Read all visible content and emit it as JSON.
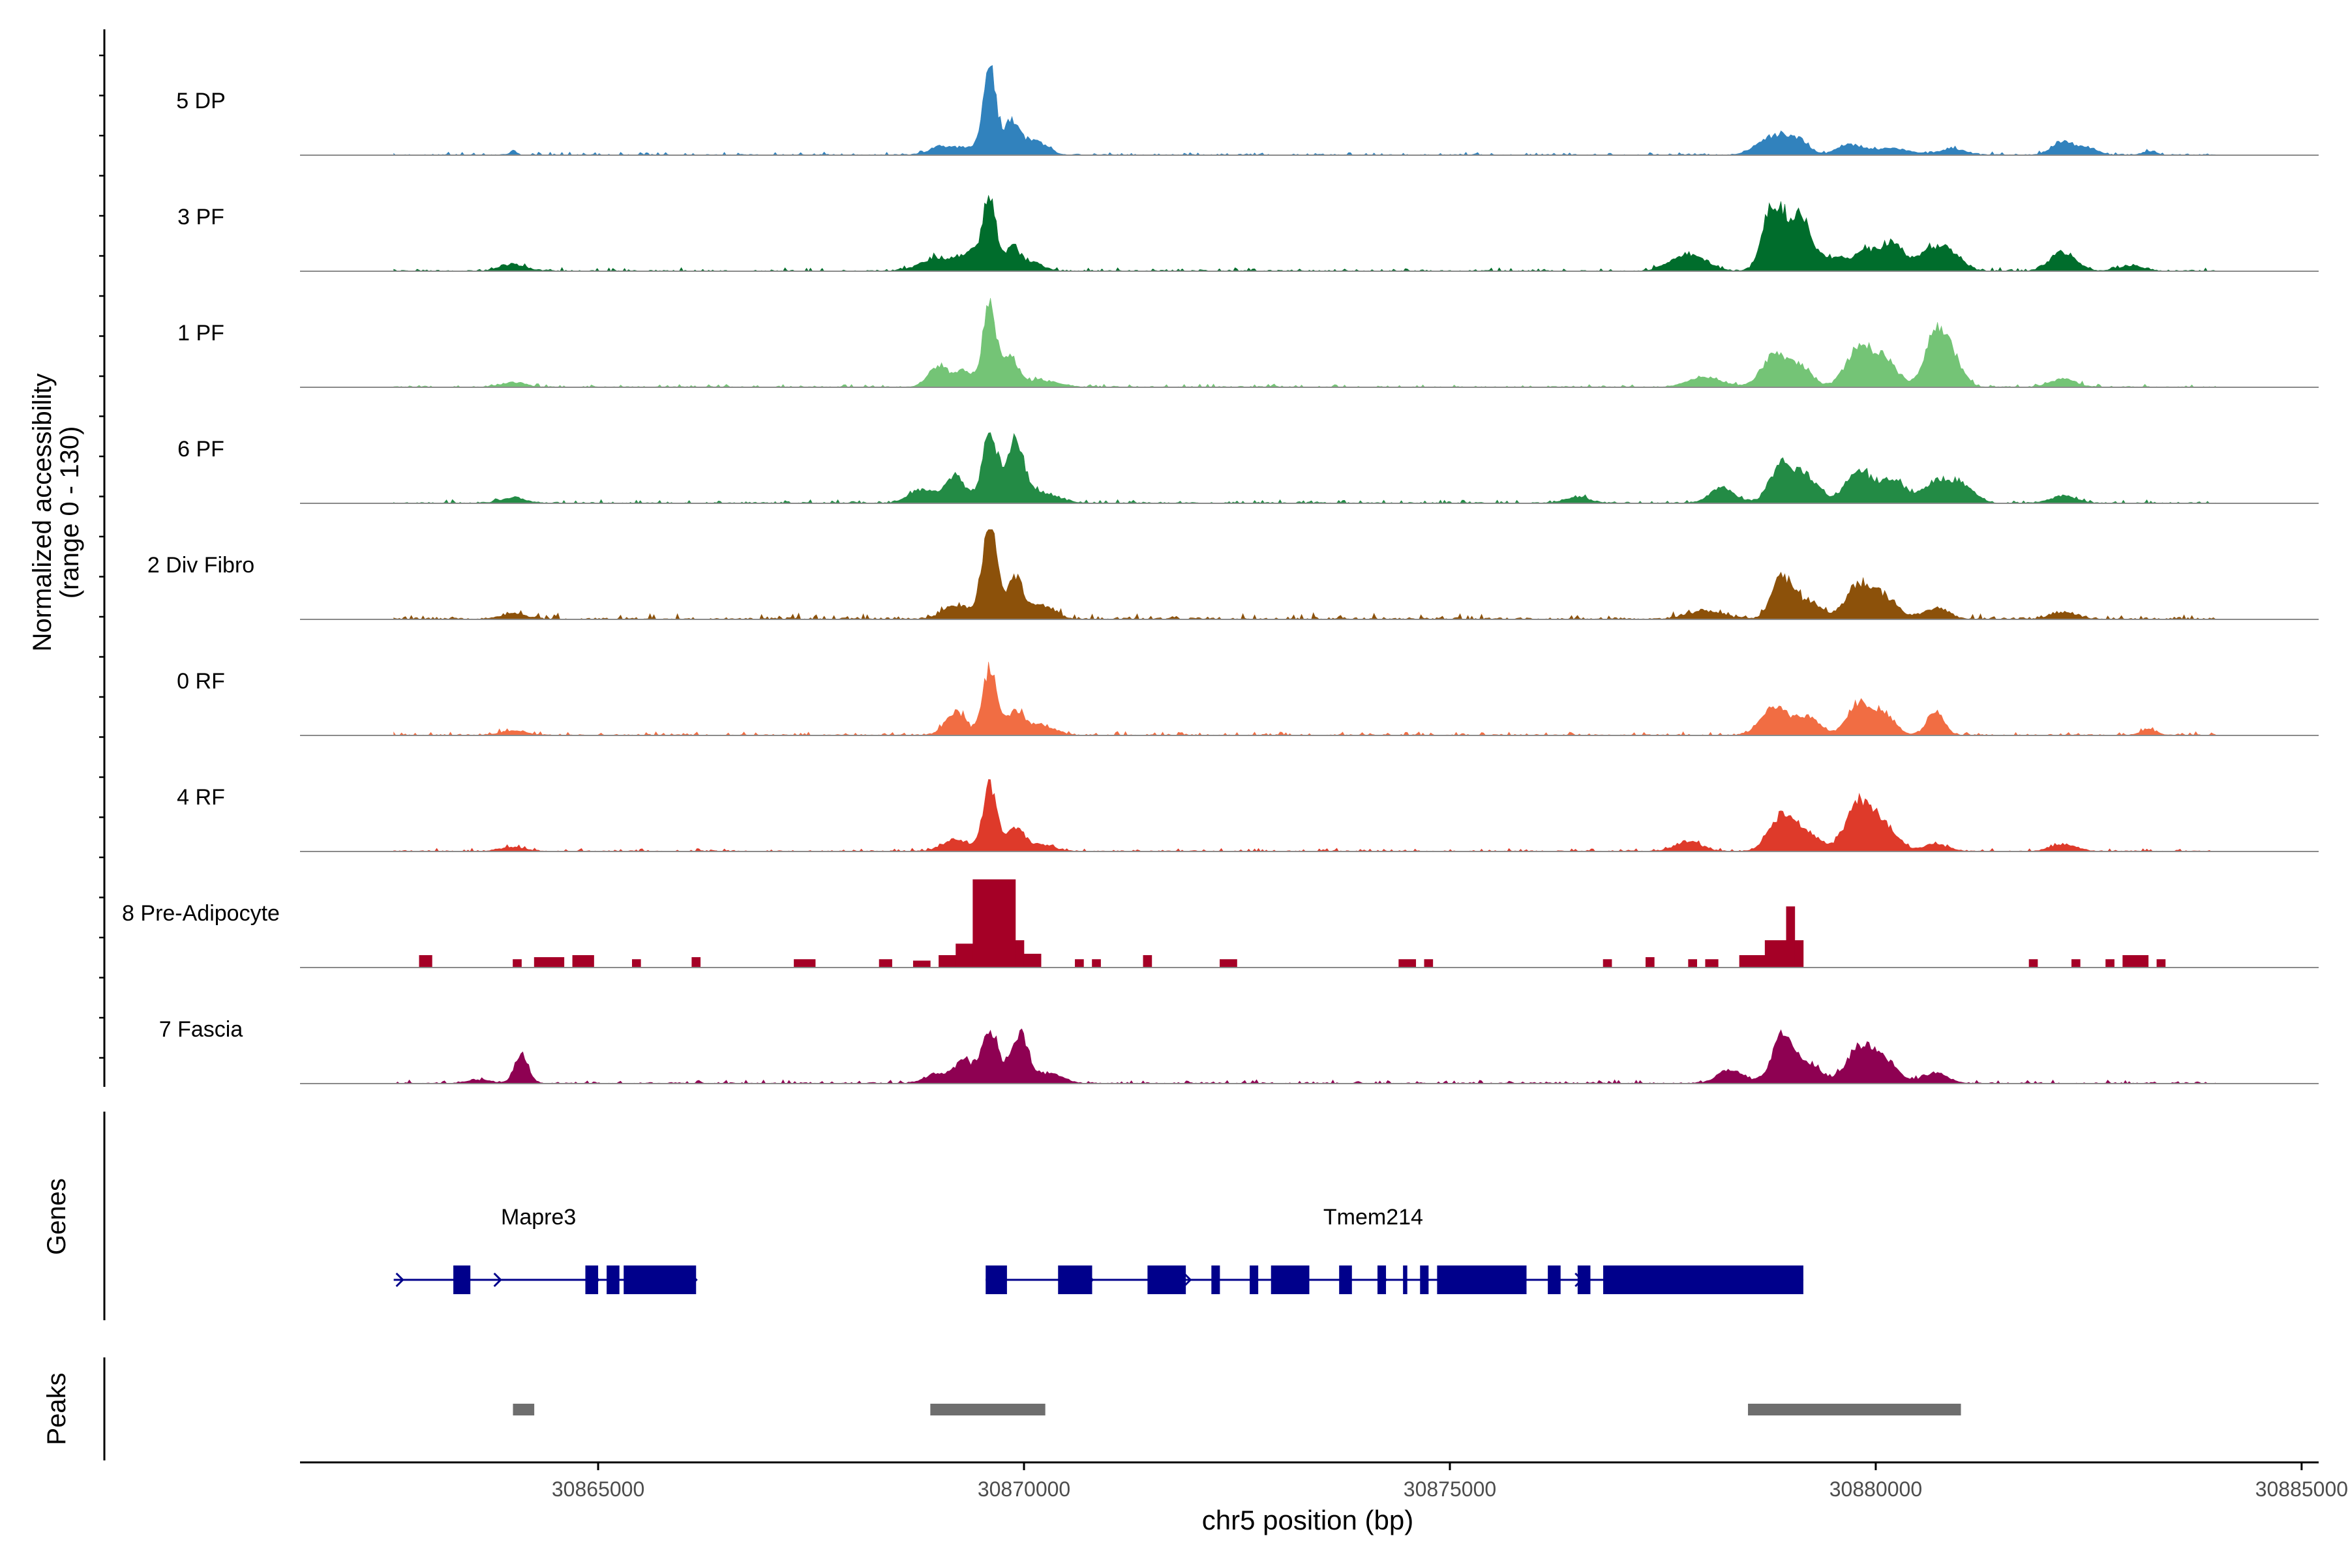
{
  "chart_data": {
    "type": "area",
    "title": "",
    "xlabel": "chr5 position (bp)",
    "ylabel": "Normalized accessibility",
    "ylabel_range": "(range 0 - 130)",
    "ylim": [
      0,
      130
    ],
    "xlim": [
      30861500,
      30885200
    ],
    "x_ticks": [
      30865000,
      30870000,
      30875000,
      30880000,
      30885000
    ],
    "x_tick_labels": [
      "30865000",
      "30870000",
      "30875000",
      "30880000",
      "30885000"
    ],
    "tracks": [
      {
        "name": "5 DP",
        "color": "#3182bd",
        "start": 30862600,
        "end": 30884000,
        "noise": 2.5,
        "stepped": false,
        "peaks": [
          [
            30864000,
            6,
            40
          ],
          [
            30869000,
            8,
            100
          ],
          [
            30869400,
            12,
            300
          ],
          [
            30869600,
            130,
            70
          ],
          [
            30869850,
            45,
            80
          ],
          [
            30870100,
            22,
            150
          ],
          [
            30878800,
            28,
            180
          ],
          [
            30879100,
            18,
            120
          ],
          [
            30879700,
            15,
            150
          ],
          [
            30880200,
            10,
            200
          ],
          [
            30880900,
            9,
            150
          ],
          [
            30882200,
            20,
            130
          ],
          [
            30882500,
            9,
            120
          ],
          [
            30883200,
            5,
            80
          ]
        ]
      },
      {
        "name": "3 PF",
        "color": "#006d2c",
        "start": 30862600,
        "end": 30884000,
        "noise": 3,
        "stepped": false,
        "peaks": [
          [
            30864000,
            10,
            150
          ],
          [
            30869000,
            20,
            200
          ],
          [
            30869400,
            28,
            120
          ],
          [
            30869600,
            110,
            70
          ],
          [
            30869850,
            30,
            80
          ],
          [
            30870050,
            15,
            150
          ],
          [
            30877800,
            25,
            200
          ],
          [
            30878800,
            95,
            120
          ],
          [
            30879100,
            80,
            130
          ],
          [
            30879500,
            20,
            150
          ],
          [
            30879900,
            28,
            150
          ],
          [
            30880200,
            40,
            120
          ],
          [
            30880600,
            25,
            150
          ],
          [
            30880850,
            28,
            150
          ],
          [
            30882200,
            28,
            150
          ],
          [
            30883000,
            8,
            150
          ]
        ]
      },
      {
        "name": "1 PF",
        "color": "#74c476",
        "start": 30862600,
        "end": 30884000,
        "noise": 2.5,
        "stepped": false,
        "peaks": [
          [
            30864000,
            7,
            150
          ],
          [
            30869000,
            30,
            120
          ],
          [
            30869300,
            25,
            100
          ],
          [
            30869600,
            120,
            80
          ],
          [
            30869850,
            40,
            90
          ],
          [
            30870200,
            10,
            200
          ],
          [
            30878000,
            15,
            200
          ],
          [
            30878800,
            45,
            140
          ],
          [
            30879100,
            30,
            140
          ],
          [
            30879800,
            55,
            150
          ],
          [
            30880100,
            40,
            150
          ],
          [
            30880700,
            75,
            120
          ],
          [
            30880900,
            40,
            120
          ],
          [
            30882200,
            12,
            150
          ]
        ]
      },
      {
        "name": "6 PF",
        "color": "#238b45",
        "start": 30862600,
        "end": 30884000,
        "noise": 3,
        "stepped": false,
        "peaks": [
          [
            30864000,
            8,
            150
          ],
          [
            30868800,
            20,
            150
          ],
          [
            30869200,
            38,
            120
          ],
          [
            30869600,
            100,
            90
          ],
          [
            30869900,
            88,
            100
          ],
          [
            30870200,
            15,
            200
          ],
          [
            30876500,
            8,
            150
          ],
          [
            30878200,
            22,
            150
          ],
          [
            30878900,
            55,
            140
          ],
          [
            30879200,
            35,
            150
          ],
          [
            30879800,
            48,
            150
          ],
          [
            30880200,
            35,
            150
          ],
          [
            30880700,
            30,
            150
          ],
          [
            30881000,
            28,
            150
          ],
          [
            30882200,
            10,
            150
          ]
        ]
      },
      {
        "name": "2 Div Fibro",
        "color": "#8c510a",
        "start": 30862600,
        "end": 30884000,
        "noise": 5,
        "stepped": false,
        "peaks": [
          [
            30864000,
            8,
            150
          ],
          [
            30869200,
            20,
            150
          ],
          [
            30869600,
            145,
            90
          ],
          [
            30869900,
            60,
            90
          ],
          [
            30870200,
            20,
            150
          ],
          [
            30878000,
            12,
            200
          ],
          [
            30878900,
            60,
            120
          ],
          [
            30879200,
            25,
            150
          ],
          [
            30879800,
            50,
            150
          ],
          [
            30880100,
            30,
            150
          ],
          [
            30880700,
            15,
            150
          ],
          [
            30882200,
            10,
            150
          ]
        ]
      },
      {
        "name": "0 RF",
        "color": "#f16d43",
        "start": 30862600,
        "end": 30884000,
        "noise": 3,
        "stepped": false,
        "peaks": [
          [
            30864000,
            7,
            150
          ],
          [
            30869200,
            35,
            120
          ],
          [
            30869600,
            100,
            80
          ],
          [
            30869900,
            35,
            100
          ],
          [
            30870200,
            15,
            150
          ],
          [
            30878800,
            42,
            150
          ],
          [
            30879200,
            25,
            150
          ],
          [
            30879800,
            48,
            130
          ],
          [
            30880100,
            30,
            130
          ],
          [
            30880700,
            35,
            100
          ],
          [
            30883200,
            8,
            100
          ]
        ]
      },
      {
        "name": "4 RF",
        "color": "#de3a2a",
        "start": 30862600,
        "end": 30884000,
        "noise": 2.5,
        "stepped": false,
        "peaks": [
          [
            30864000,
            6,
            150
          ],
          [
            30869200,
            18,
            150
          ],
          [
            30869600,
            95,
            80
          ],
          [
            30869900,
            35,
            100
          ],
          [
            30870200,
            10,
            150
          ],
          [
            30877800,
            15,
            150
          ],
          [
            30878900,
            50,
            150
          ],
          [
            30879200,
            25,
            150
          ],
          [
            30879800,
            70,
            150
          ],
          [
            30880100,
            35,
            150
          ],
          [
            30880700,
            10,
            150
          ],
          [
            30882200,
            10,
            150
          ]
        ]
      },
      {
        "name": "8 Pre-Adipocyte",
        "color": "#a50026",
        "start": 30862600,
        "end": 30884000,
        "noise": 0,
        "stepped": true,
        "blocks": [
          [
            30862900,
            30863050,
            18
          ],
          [
            30864000,
            30864100,
            12
          ],
          [
            30864250,
            30864600,
            15
          ],
          [
            30864700,
            30864950,
            18
          ],
          [
            30865400,
            30865500,
            12
          ],
          [
            30866100,
            30866200,
            15
          ],
          [
            30867300,
            30867550,
            12
          ],
          [
            30868300,
            30868450,
            12
          ],
          [
            30868700,
            30868900,
            10
          ],
          [
            30869000,
            30869200,
            18
          ],
          [
            30869200,
            30869400,
            35
          ],
          [
            30869400,
            30869900,
            150
          ],
          [
            30869900,
            30870000,
            40
          ],
          [
            30870000,
            30870200,
            20
          ],
          [
            30870600,
            30870700,
            12
          ],
          [
            30870800,
            30870900,
            12
          ],
          [
            30871400,
            30871500,
            18
          ],
          [
            30872300,
            30872500,
            12
          ],
          [
            30874400,
            30874600,
            12
          ],
          [
            30874700,
            30874800,
            12
          ],
          [
            30876800,
            30876900,
            12
          ],
          [
            30877300,
            30877400,
            15
          ],
          [
            30877800,
            30877900,
            12
          ],
          [
            30878000,
            30878150,
            12
          ],
          [
            30878400,
            30878700,
            18
          ],
          [
            30878700,
            30878950,
            40
          ],
          [
            30878950,
            30879050,
            90
          ],
          [
            30879050,
            30879150,
            40
          ],
          [
            30881800,
            30881900,
            12
          ],
          [
            30882300,
            30882400,
            12
          ],
          [
            30882700,
            30882800,
            12
          ],
          [
            30882900,
            30883200,
            18
          ],
          [
            30883300,
            30883400,
            12
          ]
        ]
      },
      {
        "name": "7 Fascia",
        "color": "#8e0152",
        "start": 30862600,
        "end": 30884000,
        "noise": 3,
        "stepped": false,
        "peaks": [
          [
            30863600,
            5,
            150
          ],
          [
            30864100,
            45,
            80
          ],
          [
            30869000,
            15,
            150
          ],
          [
            30869300,
            32,
            100
          ],
          [
            30869600,
            80,
            100
          ],
          [
            30869950,
            75,
            100
          ],
          [
            30870300,
            15,
            150
          ],
          [
            30878300,
            20,
            150
          ],
          [
            30878900,
            65,
            120
          ],
          [
            30879200,
            30,
            150
          ],
          [
            30879800,
            50,
            150
          ],
          [
            30880100,
            35,
            150
          ],
          [
            30880700,
            15,
            150
          ]
        ]
      }
    ],
    "genes": {
      "title": "Genes",
      "items": [
        {
          "name": "Mapre3",
          "strand": "+",
          "start": 30862600,
          "end": 30866150,
          "exons": [
            [
              30863300,
              30863500
            ],
            [
              30864850,
              30865000
            ],
            [
              30865100,
              30865250
            ],
            [
              30865300,
              30866150
            ]
          ]
        },
        {
          "name": "Tmem214",
          "strand": "+",
          "start": 30869550,
          "end": 30879150,
          "exons": [
            [
              30869550,
              30869800
            ],
            [
              30870400,
              30870800
            ],
            [
              30871450,
              30871900
            ],
            [
              30872200,
              30872300
            ],
            [
              30872650,
              30872750
            ],
            [
              30872900,
              30873350
            ],
            [
              30873700,
              30873850
            ],
            [
              30874150,
              30874250
            ],
            [
              30874450,
              30874500
            ],
            [
              30874650,
              30874750
            ],
            [
              30874850,
              30875900
            ],
            [
              30876150,
              30876300
            ],
            [
              30876500,
              30876650
            ],
            [
              30876800,
              30879150
            ]
          ]
        }
      ]
    },
    "peaks_track": {
      "title": "Peaks",
      "regions": [
        [
          30864000,
          30864250
        ],
        [
          30868900,
          30870250
        ],
        [
          30878500,
          30881000
        ]
      ]
    }
  }
}
